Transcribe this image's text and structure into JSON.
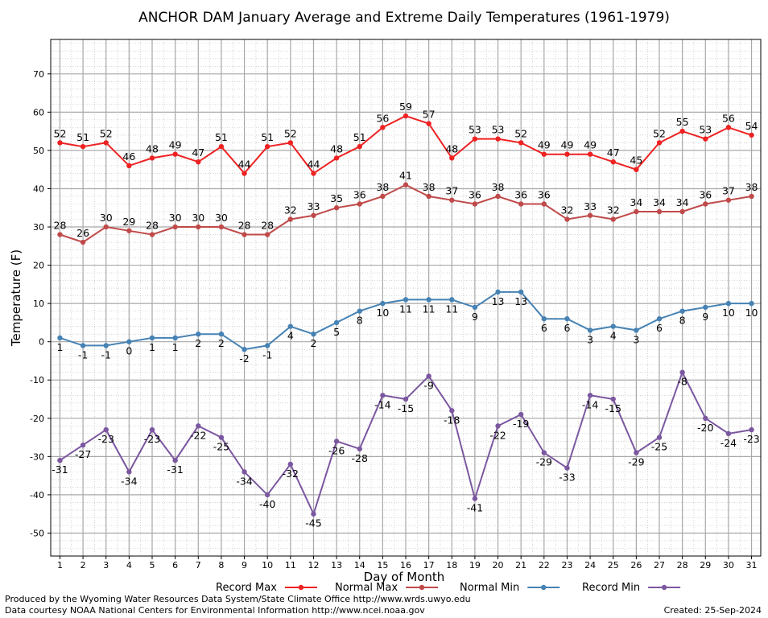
{
  "chart_data": {
    "type": "line",
    "title": "ANCHOR DAM January Average and Extreme Daily Temperatures (1961-1979)",
    "xlabel": "Day of Month",
    "ylabel": "Temperature (F)",
    "x": [
      1,
      2,
      3,
      4,
      5,
      6,
      7,
      8,
      9,
      10,
      11,
      12,
      13,
      14,
      15,
      16,
      17,
      18,
      19,
      20,
      21,
      22,
      23,
      24,
      25,
      26,
      27,
      28,
      29,
      30,
      31
    ],
    "xlim": [
      0.6,
      31.4
    ],
    "ylim": [
      -56,
      79
    ],
    "yticks": [
      -50,
      -40,
      -30,
      -20,
      -10,
      0,
      10,
      20,
      30,
      40,
      50,
      60,
      70
    ],
    "grid": true,
    "legend_position": "bottom",
    "series": [
      {
        "name": "Record Max",
        "color": "#ee2222",
        "label_position": "above",
        "values": [
          52,
          51,
          52,
          46,
          48,
          49,
          47,
          51,
          44,
          51,
          52,
          44,
          48,
          51,
          56,
          59,
          57,
          48,
          53,
          53,
          52,
          49,
          49,
          49,
          47,
          45,
          52,
          55,
          53,
          56,
          54
        ]
      },
      {
        "name": "Normal Max",
        "color": "#c04a4a",
        "label_position": "above",
        "values": [
          28,
          26,
          30,
          29,
          28,
          30,
          30,
          30,
          28,
          28,
          32,
          33,
          35,
          36,
          38,
          41,
          38,
          37,
          36,
          38,
          36,
          36,
          32,
          33,
          32,
          34,
          34,
          34,
          36,
          37,
          38
        ]
      },
      {
        "name": "Normal Min",
        "color": "#4682b4",
        "label_position": "below",
        "values": [
          1,
          -1,
          -1,
          0,
          1,
          1,
          2,
          2,
          -2,
          -1,
          4,
          2,
          5,
          8,
          10,
          11,
          11,
          11,
          9,
          13,
          13,
          6,
          6,
          3,
          4,
          3,
          6,
          8,
          9,
          10,
          10
        ]
      },
      {
        "name": "Record Min",
        "color": "#7b57a0",
        "label_position": "below",
        "values": [
          -31,
          -27,
          -23,
          -34,
          -23,
          -31,
          -22,
          -25,
          -34,
          -40,
          -32,
          -45,
          -26,
          -28,
          -14,
          -15,
          -9,
          -18,
          -41,
          -22,
          -19,
          -29,
          -33,
          -14,
          -15,
          -29,
          -25,
          -8,
          -20,
          -24,
          -23
        ]
      }
    ]
  },
  "footer": {
    "produced_by": "Produced by the Wyoming Water Resources Data System/State Climate Office http://www.wrds.uwyo.edu",
    "courtesy": "Data courtesy NOAA National Centers for Environmental Information http://www.ncei.noaa.gov",
    "created": "Created:  25-Sep-2024"
  }
}
